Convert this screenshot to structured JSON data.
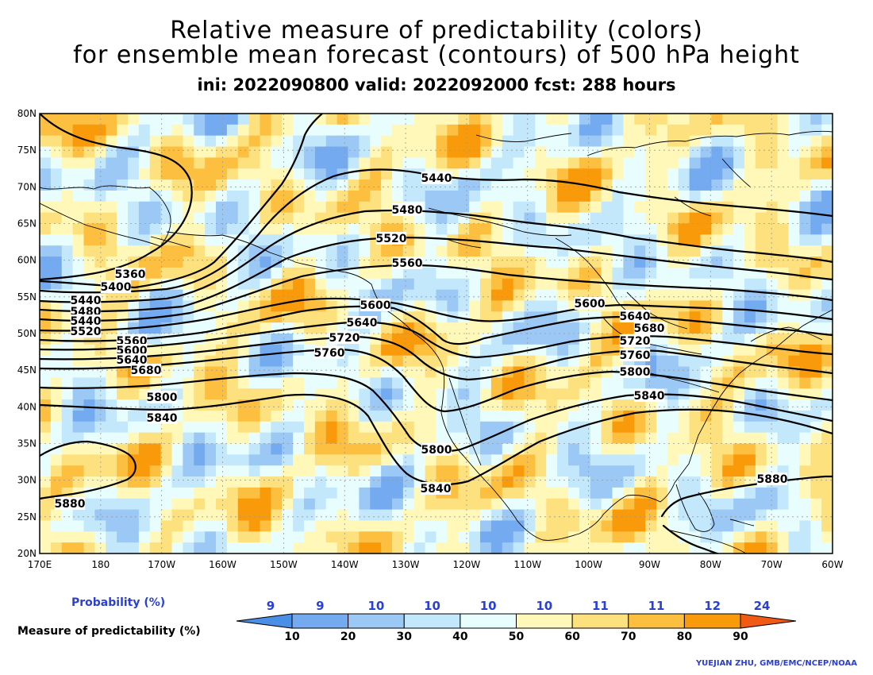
{
  "titles": {
    "line1": "Relative measure of predictability (colors)",
    "line2": "for ensemble mean forecast (contours) of 500 hPa height",
    "line3": "ini: 2022090800 valid: 2022092000 fcst: 288 hours"
  },
  "axes": {
    "lat_labels": [
      "80N",
      "75N",
      "70N",
      "65N",
      "60N",
      "55N",
      "50N",
      "45N",
      "40N",
      "35N",
      "30N",
      "25N",
      "20N"
    ],
    "lon_labels": [
      "170E",
      "180",
      "170W",
      "160W",
      "150W",
      "140W",
      "130W",
      "120W",
      "110W",
      "100W",
      "90W",
      "80W",
      "70W",
      "60W"
    ],
    "lat_range": [
      20,
      80
    ],
    "lon_range": [
      "170E",
      "60W"
    ],
    "grid": "dotted"
  },
  "contours": {
    "labels": [
      "5360",
      "5400",
      "5440",
      "5480",
      "5520",
      "5560",
      "5600",
      "5640",
      "5680",
      "5720",
      "5760",
      "5800",
      "5840",
      "5880"
    ],
    "interval": 40
  },
  "colorbar": {
    "probability_label": "Probability (%)",
    "measure_label": "Measure of predictability (%)",
    "probabilities": [
      "9",
      "9",
      "10",
      "10",
      "10",
      "10",
      "11",
      "11",
      "12",
      "24"
    ],
    "ticks": [
      "10",
      "20",
      "30",
      "40",
      "50",
      "60",
      "70",
      "80",
      "90"
    ],
    "colors": [
      "#4a8fe6",
      "#74aaf0",
      "#9cc8f6",
      "#c4e8fb",
      "#e8fdfd",
      "#fff8b8",
      "#fde17e",
      "#fcbf40",
      "#f99a0a",
      "#f05a14"
    ]
  },
  "credit": "YUEJIAN ZHU, GMB/EMC/NCEP/NOAA"
}
